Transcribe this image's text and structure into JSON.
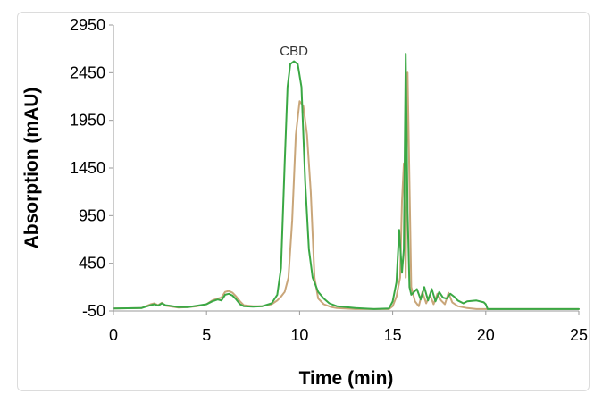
{
  "chart_data": {
    "type": "line",
    "title": "",
    "xlabel": "Time (min)",
    "ylabel": "Absorption (mAU)",
    "xlim": [
      0,
      25
    ],
    "ylim": [
      -50,
      2950
    ],
    "xticks": [
      "0",
      "5",
      "10",
      "15",
      "20",
      "25"
    ],
    "yticks": [
      "-50",
      "450",
      "950",
      "1450",
      "1950",
      "2450",
      "2950"
    ],
    "grid": false,
    "annotations": [
      {
        "text": "CBD",
        "x": 9.7,
        "y": 2630
      }
    ],
    "series": [
      {
        "color": "#3aa844",
        "x": [
          0,
          1.5,
          2.0,
          2.2,
          2.4,
          2.6,
          2.8,
          3.0,
          3.5,
          4.0,
          4.5,
          5.0,
          5.3,
          5.6,
          5.8,
          6.0,
          6.2,
          6.4,
          6.6,
          6.8,
          7.0,
          7.5,
          8.0,
          8.5,
          8.8,
          9.0,
          9.2,
          9.35,
          9.5,
          9.7,
          9.9,
          10.1,
          10.3,
          10.5,
          10.7,
          11.0,
          11.3,
          11.6,
          12.0,
          13.0,
          14.0,
          14.8,
          15.0,
          15.2,
          15.35,
          15.5,
          15.6,
          15.7,
          15.8,
          15.9,
          16.0,
          16.3,
          16.5,
          16.7,
          16.9,
          17.1,
          17.3,
          17.5,
          17.7,
          17.9,
          18.1,
          18.3,
          18.5,
          18.8,
          19.0,
          19.5,
          19.9,
          20.0,
          20.1,
          21.0,
          22.0,
          23.0,
          24.0,
          25.0
        ],
        "y": [
          -25,
          -20,
          10,
          20,
          5,
          30,
          10,
          5,
          -10,
          -10,
          5,
          20,
          50,
          70,
          60,
          120,
          130,
          110,
          70,
          20,
          0,
          -5,
          0,
          30,
          120,
          400,
          1500,
          2300,
          2540,
          2570,
          2540,
          2300,
          1300,
          600,
          300,
          150,
          80,
          30,
          0,
          -20,
          -30,
          -25,
          50,
          250,
          800,
          350,
          600,
          2650,
          1000,
          200,
          120,
          180,
          70,
          200,
          60,
          180,
          50,
          150,
          90,
          80,
          130,
          100,
          60,
          30,
          50,
          60,
          40,
          20,
          -30,
          -30,
          -30,
          -30,
          -30,
          -30
        ]
      },
      {
        "color": "#c9a67a",
        "x": [
          0,
          1.5,
          2.0,
          2.2,
          2.4,
          2.6,
          2.8,
          3.0,
          3.5,
          4.0,
          4.5,
          5.0,
          5.3,
          5.6,
          5.8,
          6.0,
          6.2,
          6.4,
          6.6,
          6.8,
          7.0,
          7.5,
          8.0,
          8.5,
          8.8,
          9.0,
          9.2,
          9.4,
          9.6,
          9.8,
          10.0,
          10.2,
          10.4,
          10.6,
          10.8,
          11.0,
          11.3,
          11.7,
          12.0,
          13.0,
          14.0,
          14.8,
          15.0,
          15.2,
          15.4,
          15.5,
          15.6,
          15.7,
          15.8,
          15.9,
          16.0,
          16.2,
          16.4,
          16.6,
          16.8,
          17.0,
          17.2,
          17.4,
          17.6,
          17.8,
          18.0,
          18.2,
          18.5,
          19.0,
          19.5,
          20.0,
          21.0,
          22.0,
          23.0,
          24.0,
          25.0
        ],
        "y": [
          -25,
          -20,
          20,
          30,
          10,
          35,
          5,
          0,
          -15,
          -10,
          0,
          20,
          60,
          80,
          90,
          150,
          160,
          140,
          100,
          50,
          10,
          0,
          0,
          20,
          60,
          100,
          150,
          300,
          900,
          1800,
          2150,
          2100,
          1800,
          1200,
          300,
          80,
          20,
          -10,
          -20,
          -30,
          -30,
          -30,
          0,
          100,
          300,
          1100,
          1500,
          300,
          2450,
          1300,
          200,
          50,
          0,
          150,
          30,
          120,
          20,
          130,
          60,
          20,
          140,
          40,
          0,
          -20,
          -30,
          -30,
          -30,
          -30,
          -30,
          -30,
          -30
        ]
      }
    ]
  }
}
